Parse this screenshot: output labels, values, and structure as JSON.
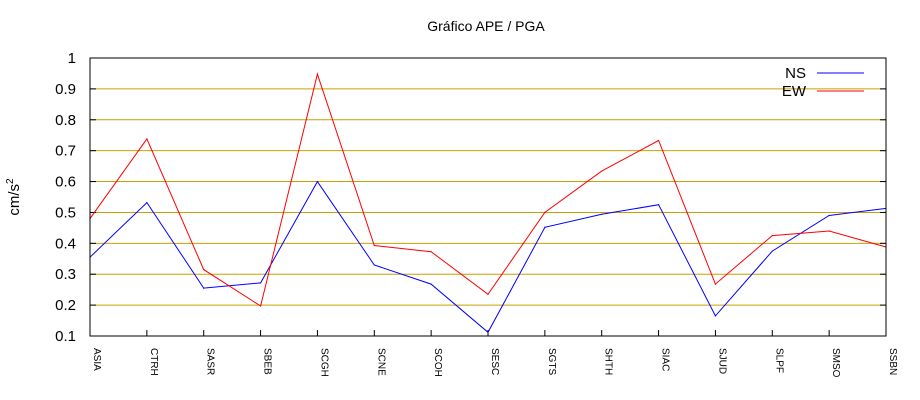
{
  "chart_data": {
    "type": "line",
    "title": "Gráfico  APE / PGA",
    "xlabel": "",
    "ylabel": "cm/s",
    "ylabel_superscript": "2",
    "ylim": [
      0.1,
      1.0
    ],
    "yticks": [
      "0.1",
      "0.2",
      "0.3",
      "0.4",
      "0.5",
      "0.6",
      "0.7",
      "0.8",
      "0.9",
      "1"
    ],
    "grid": "horizontal",
    "legend_position": "top-right",
    "categories": [
      "ASIA",
      "CTRH",
      "SASR",
      "SBEB",
      "SCGH",
      "SCNE",
      "SCOH",
      "SESC",
      "SGTS",
      "SHTH",
      "SIAC",
      "SJUD",
      "SLPF",
      "SMSO",
      "SSBN"
    ],
    "series": [
      {
        "name": "NS",
        "color": "#0000ff",
        "values": [
          0.355,
          0.532,
          0.255,
          0.272,
          0.6,
          0.33,
          0.268,
          0.112,
          0.452,
          0.494,
          0.525,
          0.165,
          0.375,
          0.49,
          0.513
        ]
      },
      {
        "name": "EW",
        "color": "#ff0000",
        "values": [
          0.48,
          0.738,
          0.315,
          0.197,
          0.948,
          0.393,
          0.373,
          0.235,
          0.5,
          0.634,
          0.733,
          0.268,
          0.425,
          0.44,
          0.388
        ]
      }
    ],
    "grid_color": "#c8a000"
  }
}
